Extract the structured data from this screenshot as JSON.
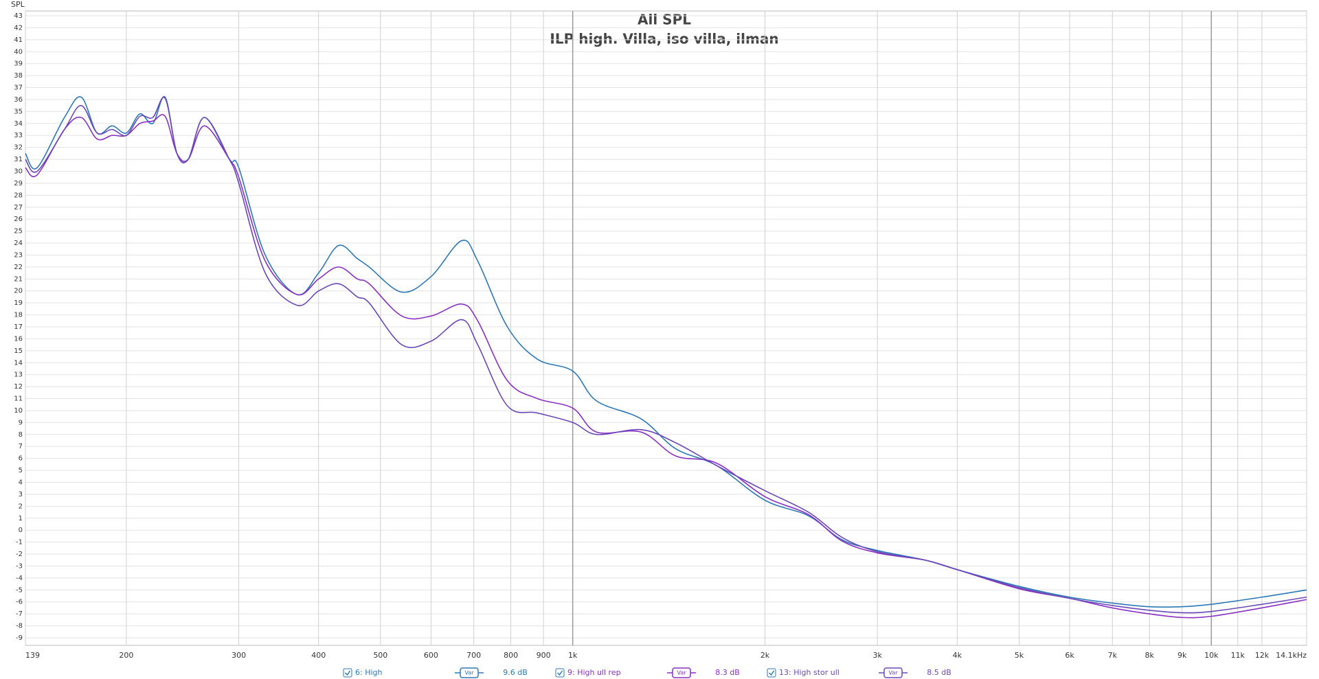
{
  "chart_data": {
    "type": "line",
    "title": "All SPL",
    "subtitle": "ILP high. Villa, iso villa, ilman",
    "y_label": "SPL",
    "log_x": true,
    "grid": true,
    "legend_button": "Var",
    "xlim": [
      139,
      14100
    ],
    "ylim": [
      -9,
      43
    ],
    "xticks": [
      139,
      200,
      300,
      400,
      500,
      600,
      700,
      800,
      900,
      {
        "value": 1000,
        "label": "1k"
      },
      {
        "value": 2000,
        "label": "2k"
      },
      {
        "value": 3000,
        "label": "3k"
      },
      {
        "value": 4000,
        "label": "4k"
      },
      {
        "value": 5000,
        "label": "5k"
      },
      {
        "value": 6000,
        "label": "6k"
      },
      {
        "value": 7000,
        "label": "7k"
      },
      {
        "value": 8000,
        "label": "8k"
      },
      {
        "value": 9000,
        "label": "9k"
      },
      {
        "value": 10000,
        "label": "10k"
      },
      {
        "value": 11000,
        "label": "11k"
      },
      {
        "value": 12000,
        "label": "12k"
      },
      {
        "value": 14100,
        "label": "14.1kHz"
      }
    ],
    "yticks": [
      -9,
      -8,
      -7,
      -6,
      -5,
      -4,
      -3,
      -2,
      -1,
      0,
      1,
      2,
      3,
      4,
      5,
      6,
      7,
      8,
      9,
      10,
      11,
      12,
      13,
      14,
      15,
      16,
      17,
      18,
      19,
      20,
      21,
      22,
      23,
      24,
      25,
      26,
      27,
      28,
      29,
      30,
      31,
      32,
      33,
      34,
      35,
      36,
      37,
      38,
      39,
      40,
      41,
      42,
      43
    ],
    "x": [
      139,
      145,
      160,
      170,
      180,
      190,
      200,
      210,
      220,
      230,
      240,
      250,
      265,
      290,
      300,
      330,
      370,
      400,
      430,
      460,
      480,
      540,
      600,
      670,
      710,
      790,
      880,
      1000,
      1090,
      1280,
      1450,
      1680,
      2000,
      2340,
      2640,
      3000,
      3560,
      4000,
      5000,
      6000,
      7000,
      8000,
      9000,
      10000,
      12000,
      14100
    ],
    "series": [
      {
        "name": "6: High",
        "legend_value": "9.6 dB",
        "color": "#2b78b8",
        "values": [
          31.5,
          30.3,
          34.5,
          36.2,
          33.2,
          33.8,
          33.2,
          34.8,
          34,
          36.2,
          31.5,
          31,
          34.5,
          31,
          30.3,
          23,
          19.7,
          21.5,
          23.8,
          22.7,
          22,
          19.9,
          21.2,
          24.2,
          22.5,
          17,
          14.3,
          13.3,
          10.8,
          9.3,
          6.8,
          5.4,
          2.5,
          1.2,
          -0.8,
          -1.7,
          -2.5,
          -3.3,
          -4.7,
          -5.6,
          -6.1,
          -6.4,
          -6.4,
          -6.2,
          -5.6,
          -5.0
        ]
      },
      {
        "name": "9: High ull rep",
        "legend_value": "8.3 dB",
        "color": "#8a2fc4",
        "values": [
          30.3,
          29.7,
          33.5,
          34.5,
          32.7,
          33,
          33,
          34,
          34.2,
          34.6,
          31.5,
          31,
          33.8,
          31,
          29.5,
          22.5,
          19.7,
          21,
          22,
          21,
          20.6,
          17.9,
          17.9,
          18.9,
          17.5,
          12.5,
          11,
          10.2,
          8.2,
          8.2,
          6.2,
          5.6,
          2.8,
          1.3,
          -0.9,
          -1.9,
          -2.5,
          -3.3,
          -4.9,
          -5.7,
          -6.5,
          -7.0,
          -7.3,
          -7.2,
          -6.5,
          -5.8
        ]
      },
      {
        "name": "13: High stor ull",
        "legend_value": "8.5 dB",
        "color": "#6a48b8",
        "values": [
          31,
          30,
          33.5,
          35.5,
          33.2,
          33.5,
          33,
          34.6,
          34.5,
          36.1,
          31.5,
          31,
          34.5,
          31,
          29,
          21.5,
          18.8,
          20,
          20.6,
          19.5,
          19,
          15.5,
          15.8,
          17.6,
          15.5,
          10.4,
          9.8,
          9,
          8,
          8.4,
          7.3,
          5.4,
          3.3,
          1.5,
          -0.6,
          -1.8,
          -2.5,
          -3.3,
          -4.8,
          -5.7,
          -6.3,
          -6.7,
          -6.9,
          -6.8,
          -6.2,
          -5.6
        ]
      }
    ]
  }
}
